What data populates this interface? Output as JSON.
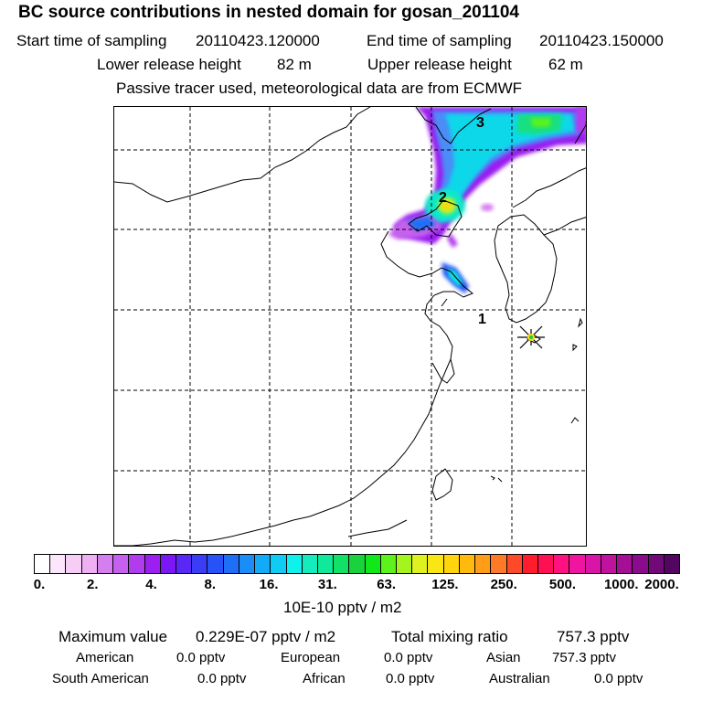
{
  "header": {
    "title": "BC  source contributions in nested domain for gosan_201104",
    "start_label": "Start time of sampling",
    "start_value": "20110423.120000",
    "end_label": "End time of sampling",
    "end_value": "20110423.150000",
    "lower_label": "Lower release height",
    "lower_value": "82 m",
    "upper_label": "Upper release height",
    "upper_value": "62 m",
    "tracer_note": "Passive tracer used, meteorological data are from ECMWF"
  },
  "map": {
    "markers": [
      {
        "label": "1"
      },
      {
        "label": "2"
      },
      {
        "label": "3"
      }
    ],
    "station_marker": "star-marker"
  },
  "colorbar": {
    "colors": [
      "#ffffff",
      "#fbe6fb",
      "#f5cdf5",
      "#eeb0f3",
      "#d57ef0",
      "#c660ee",
      "#b13cee",
      "#9a1ff0",
      "#7b16f5",
      "#5a28f6",
      "#3b3cf6",
      "#2752f7",
      "#1f6ff6",
      "#1a8ef6",
      "#13aaf7",
      "#10cbf3",
      "#10f0ec",
      "#14ecbd",
      "#10e89a",
      "#12e168",
      "#1ad23e",
      "#10e81a",
      "#5cf21a",
      "#a6f41e",
      "#ddf21f",
      "#f8e615",
      "#ffd50e",
      "#ffba0c",
      "#ff9c18",
      "#ff7a28",
      "#ff4a2a",
      "#ff1c2c",
      "#ff0f54",
      "#ff1180",
      "#f015a0",
      "#d815a6",
      "#c0129e",
      "#a40f96",
      "#8a0c8c",
      "#700a78",
      "#520660"
    ],
    "ticks": [
      "0.",
      "2.",
      "4.",
      "8.",
      "16.",
      "31.",
      "63.",
      "125.",
      "250.",
      "500.",
      "1000.",
      "2000."
    ],
    "unit": "10E-10 pptv / m2"
  },
  "summary": {
    "max_label": "Maximum value",
    "max_value": "0.229E-07 pptv / m2",
    "total_label": "Total mixing ratio",
    "total_value": "757.3 pptv",
    "regions": [
      {
        "name": "American",
        "value": "0.0 pptv"
      },
      {
        "name": "European",
        "value": "0.0 pptv"
      },
      {
        "name": "Asian",
        "value": "757.3 pptv"
      },
      {
        "name": "South American",
        "value": "0.0 pptv"
      },
      {
        "name": "African",
        "value": "0.0 pptv"
      },
      {
        "name": "Australian",
        "value": "0.0 pptv"
      }
    ]
  }
}
